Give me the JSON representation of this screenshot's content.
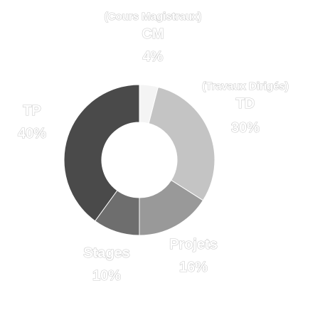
{
  "chart_data": {
    "type": "pie",
    "donut": true,
    "title": "",
    "slices": [
      {
        "label": "CM",
        "sublabel": "(Cours Magistraux)",
        "value": 4,
        "pct_label": "4%",
        "color": "#f4f4f4"
      },
      {
        "label": "TD",
        "sublabel": "(Travaux Dirigés)",
        "value": 30,
        "pct_label": "30%",
        "color": "#c4c4c4"
      },
      {
        "label": "Projets",
        "sublabel": "",
        "value": 16,
        "pct_label": "16%",
        "color": "#999999"
      },
      {
        "label": "Stages",
        "sublabel": "",
        "value": 10,
        "pct_label": "10%",
        "color": "#6e6e6e"
      },
      {
        "label": "TP",
        "sublabel": "",
        "value": 40,
        "pct_label": "40%",
        "color": "#4a4a4a"
      }
    ],
    "legend": "none",
    "start_angle": "top",
    "direction": "clockwise"
  }
}
